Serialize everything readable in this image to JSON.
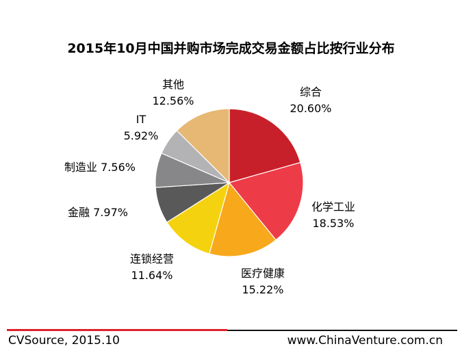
{
  "title": "2015年10月中国并购市场完成交易金额占比按行业分布",
  "chart_data": {
    "type": "pie",
    "title": "2015年10月中国并购市场完成交易金额占比按行业分布",
    "start_angle_deg": 90,
    "direction": "clockwise",
    "slices": [
      {
        "label": "综合",
        "value": 20.6,
        "value_text": "20.60%",
        "color": "#c8202a"
      },
      {
        "label": "化学工业",
        "value": 18.53,
        "value_text": "18.53%",
        "color": "#ee3b48"
      },
      {
        "label": "医疗健康",
        "value": 15.22,
        "value_text": "15.22%",
        "color": "#f7a81b"
      },
      {
        "label": "连锁经营",
        "value": 11.64,
        "value_text": "11.64%",
        "color": "#f5d20f"
      },
      {
        "label": "金融",
        "value": 7.97,
        "value_text": "7.97%",
        "color": "#595959"
      },
      {
        "label": "制造业",
        "value": 7.56,
        "value_text": "7.56%",
        "color": "#87878a"
      },
      {
        "label": "IT",
        "value": 5.92,
        "value_text": "5.92%",
        "color": "#b3b3b6"
      },
      {
        "label": "其他",
        "value": 12.56,
        "value_text": "12.56%",
        "color": "#e6b873"
      }
    ]
  },
  "footer": {
    "source": "CVSource, 2015.10",
    "website": "www.ChinaVenture.com.cn",
    "accent_color": "#e0202a",
    "line_color": "#111111"
  }
}
